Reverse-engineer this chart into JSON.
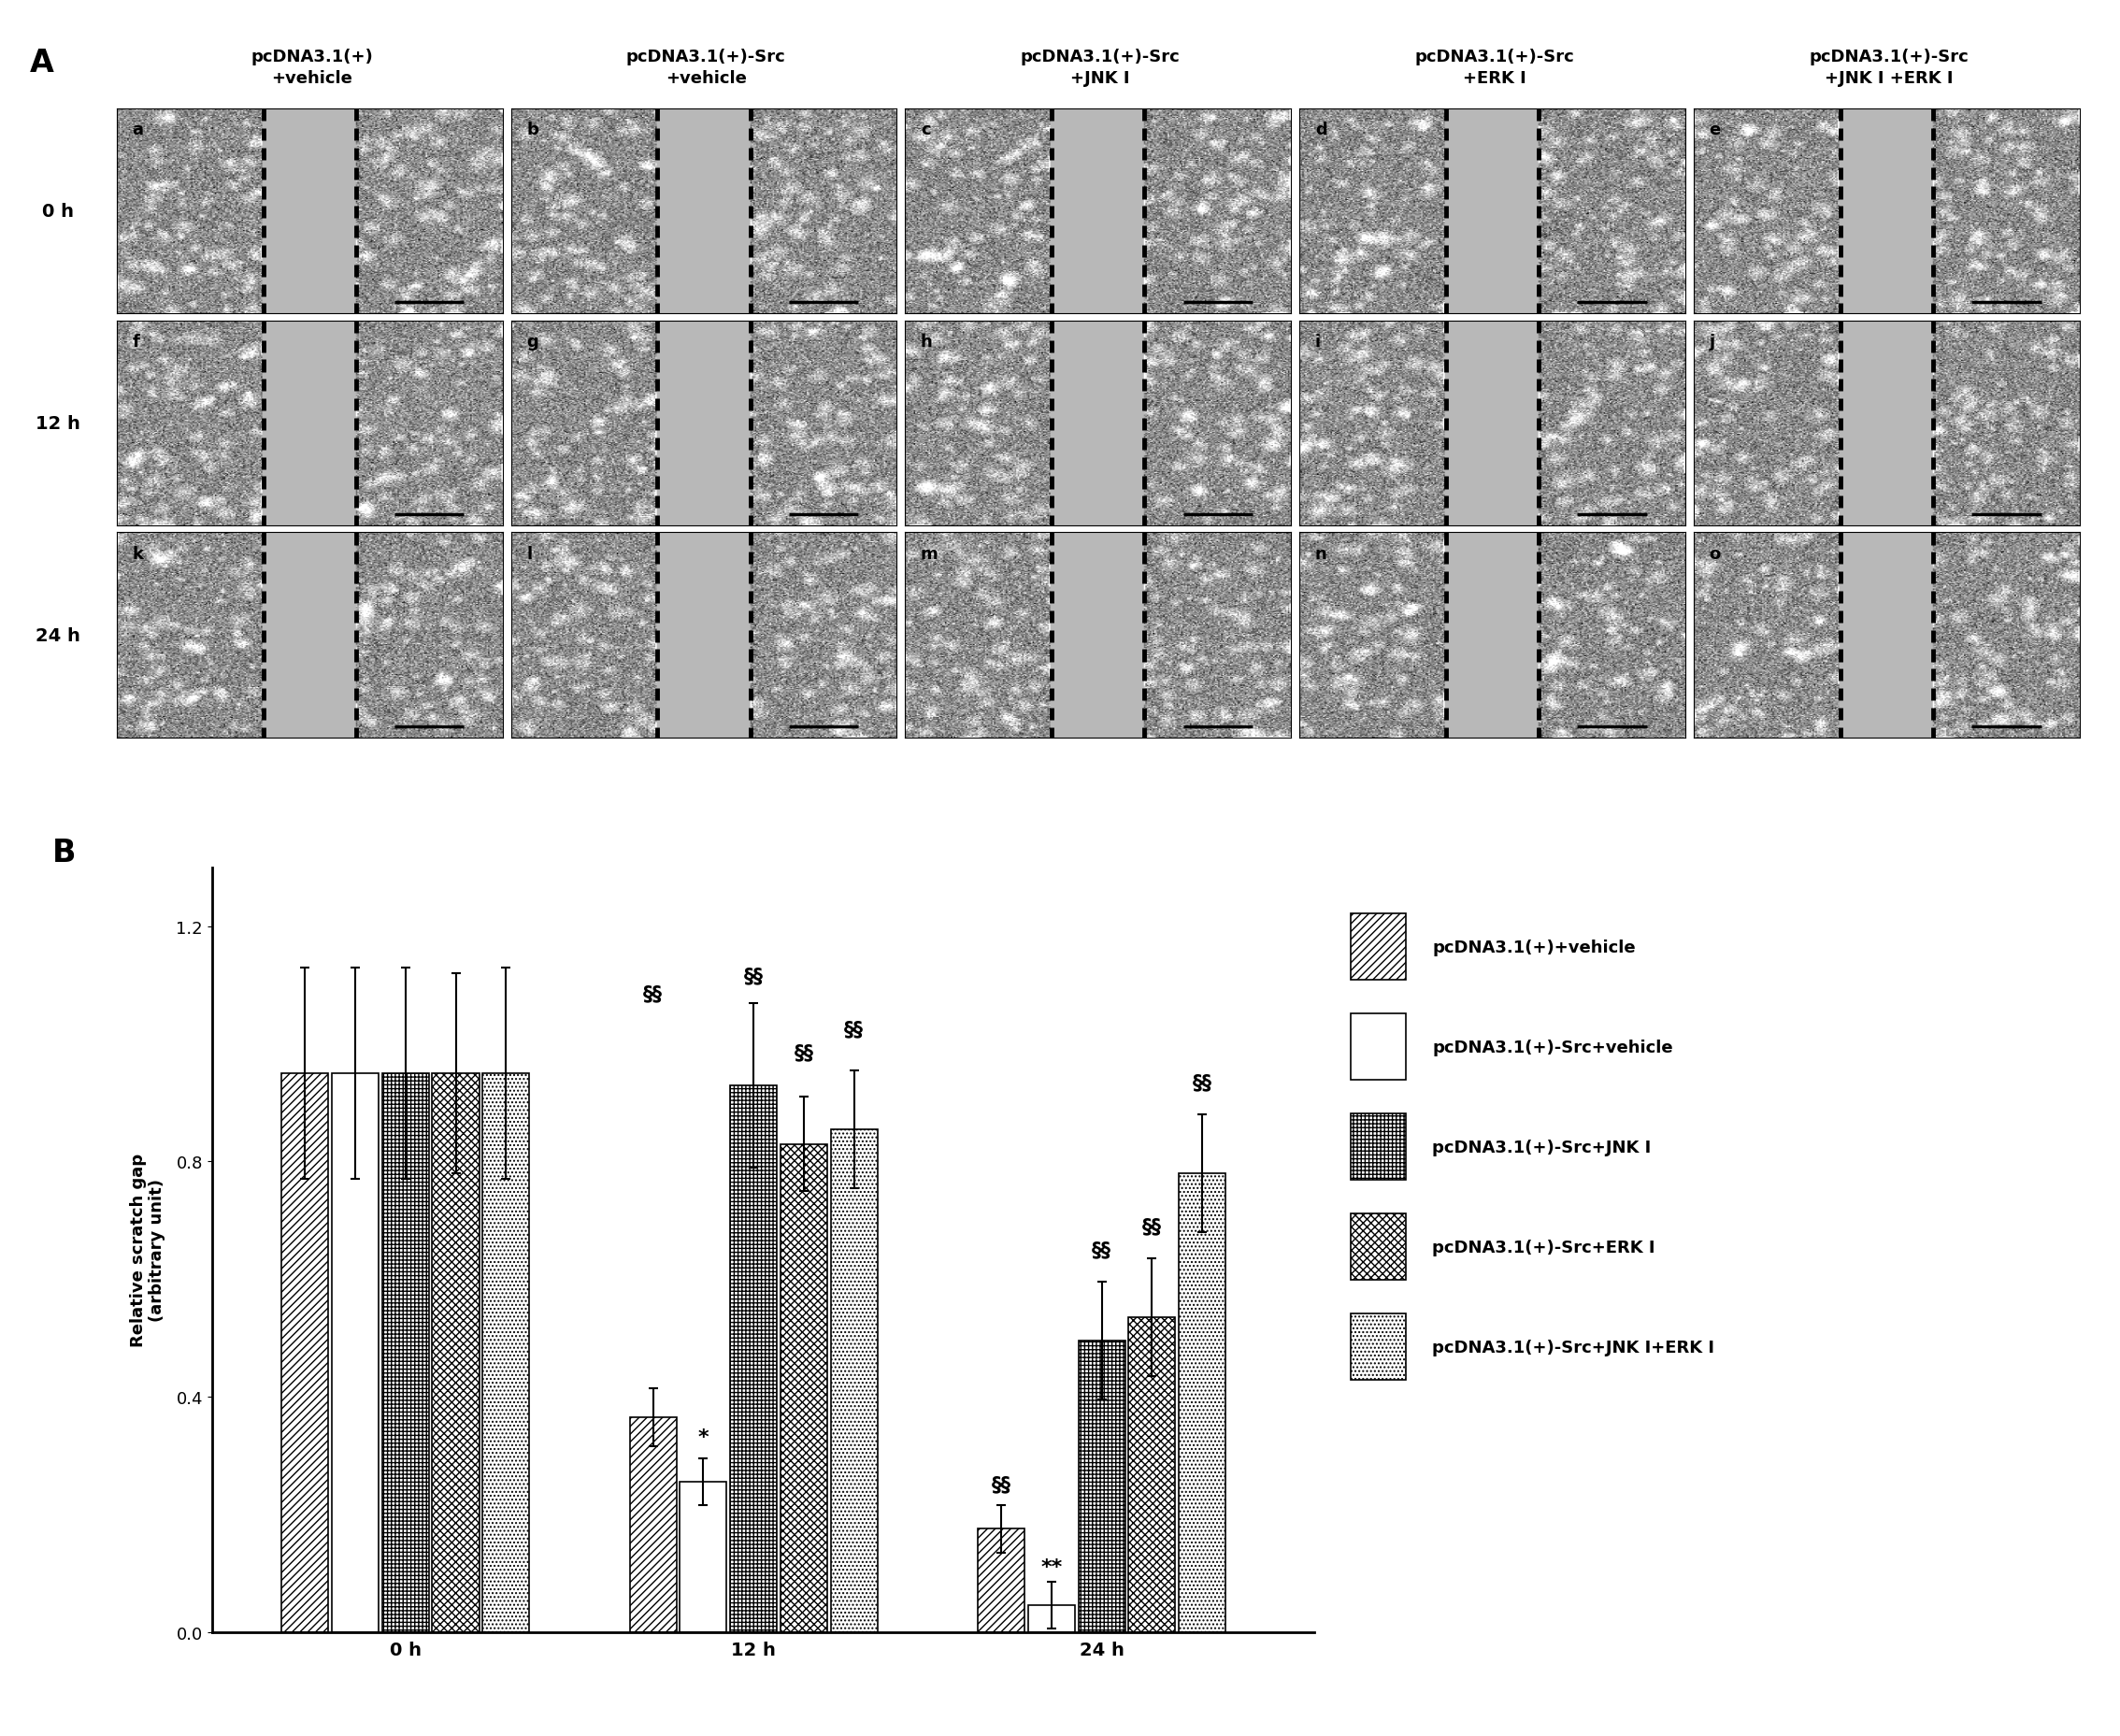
{
  "panel_A_label": "A",
  "panel_B_label": "B",
  "col_labels": [
    "pcDNA3.1(+)\n+vehicle",
    "pcDNA3.1(+)-Src\n+vehicle",
    "pcDNA3.1(+)-Src\n+JNK I",
    "pcDNA3.1(+)-Src\n+ERK I",
    "pcDNA3.1(+)-Src\n+JNK I +ERK I"
  ],
  "row_labels": [
    "0 h",
    "12 h",
    "24 h"
  ],
  "cell_labels": [
    [
      "a",
      "b",
      "c",
      "d",
      "e"
    ],
    [
      "f",
      "g",
      "h",
      "i",
      "j"
    ],
    [
      "k",
      "l",
      "m",
      "n",
      "o"
    ]
  ],
  "bar_groups": [
    "0 h",
    "12 h",
    "24 h"
  ],
  "bar_values": [
    [
      0.95,
      0.95,
      0.95,
      0.95,
      0.95
    ],
    [
      0.365,
      0.255,
      0.93,
      0.83,
      0.855
    ],
    [
      0.175,
      0.045,
      0.495,
      0.535,
      0.78
    ]
  ],
  "bar_errors": [
    [
      0.18,
      0.18,
      0.18,
      0.17,
      0.18
    ],
    [
      0.05,
      0.04,
      0.14,
      0.08,
      0.1
    ],
    [
      0.04,
      0.04,
      0.1,
      0.1,
      0.1
    ]
  ],
  "legend_labels": [
    "pcDNA3.1(+)+vehicle",
    "pcDNA3.1(+)-Src+vehicle",
    "pcDNA3.1(+)-Src+JNK I",
    "pcDNA3.1(+)-Src+ERK I",
    "pcDNA3.1(+)-Src+JNK I+ERK I"
  ],
  "ylabel": "Relative scratch gap\n(arbitrary unit)",
  "ylim": [
    0,
    1.3
  ],
  "yticks": [
    0,
    0.4,
    0.8,
    1.2
  ],
  "hatch_list": [
    "////",
    "====",
    "++++",
    "xxxx",
    "...."
  ],
  "background_color": "#ffffff",
  "bar_width": 0.13,
  "font_size": 13
}
